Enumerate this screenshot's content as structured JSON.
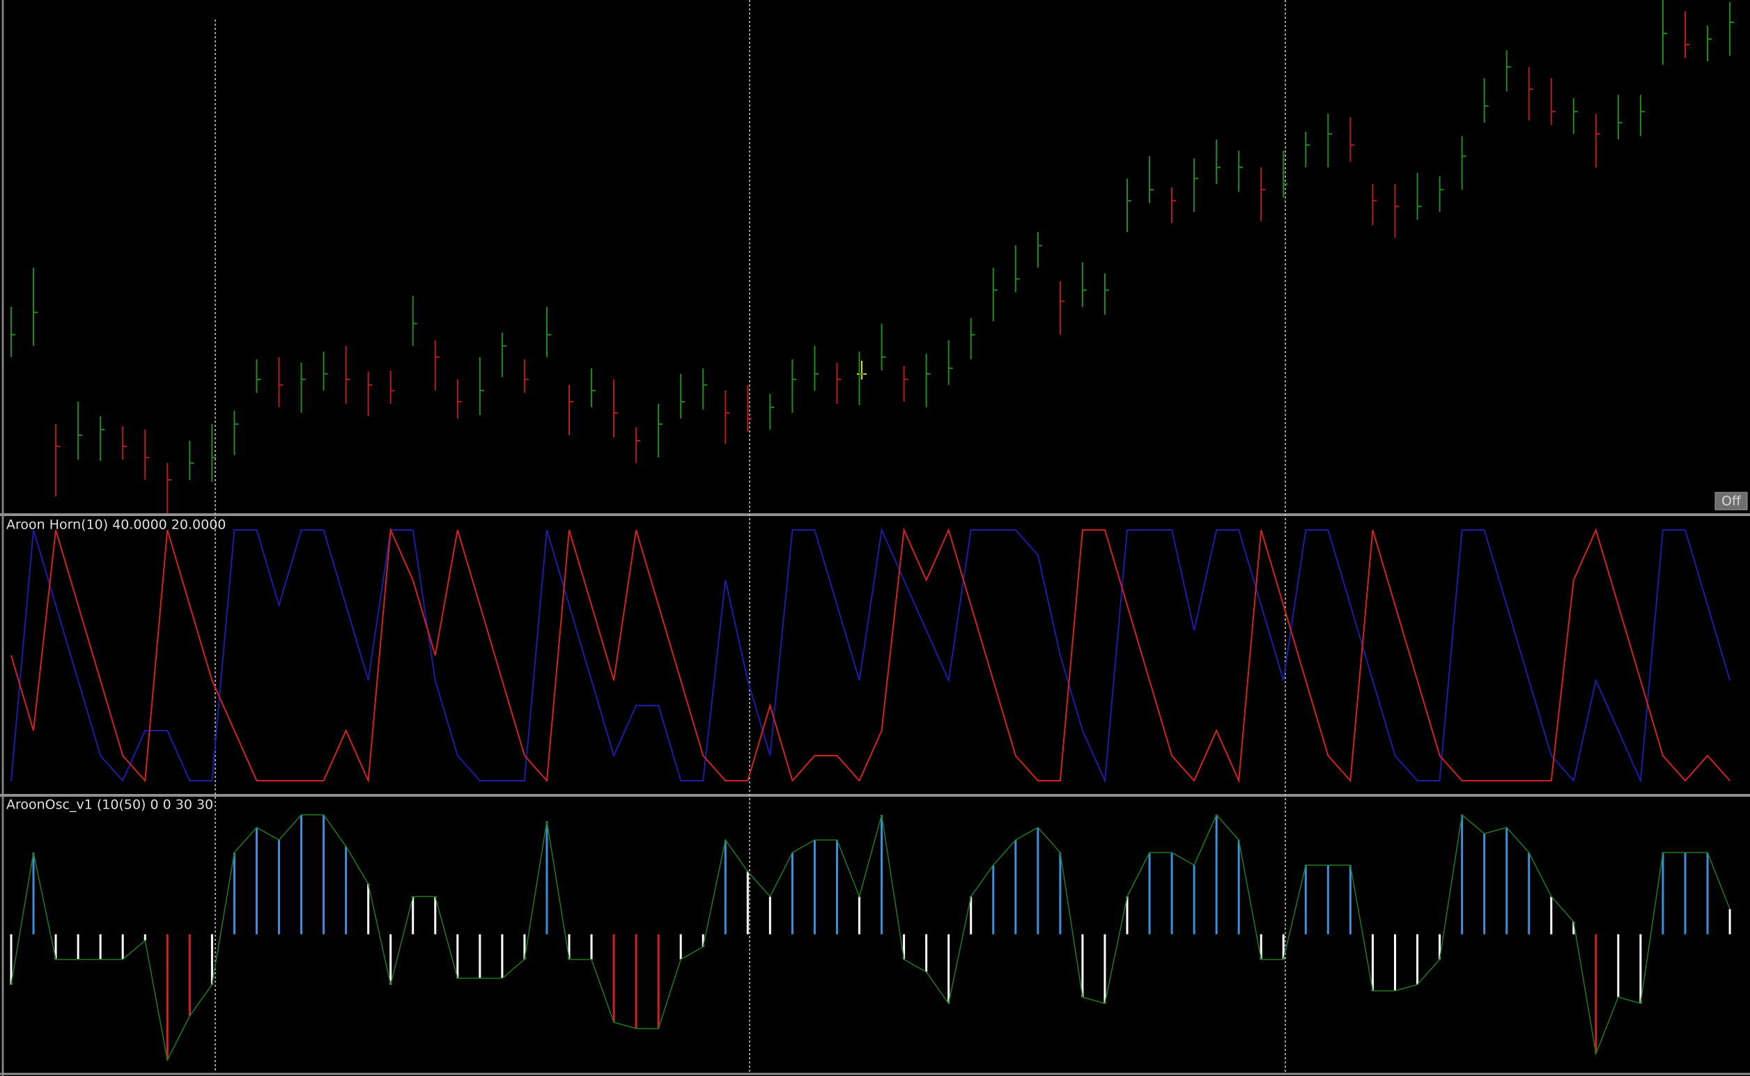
{
  "chart_data": [
    {
      "type": "ohlc",
      "ylim": [
        0,
        460
      ],
      "up_color": "#1f8c1f",
      "down_color": "#b81c1c",
      "high": [
        185,
        220,
        80,
        100,
        87,
        78,
        75,
        45,
        65,
        80,
        92,
        138,
        140,
        135,
        145,
        150,
        127,
        128,
        195,
        155,
        120,
        140,
        162,
        138,
        185,
        115,
        130,
        120,
        77,
        98,
        125,
        130,
        110,
        115,
        107,
        138,
        150,
        135,
        145,
        170,
        132,
        143,
        155,
        175,
        220,
        240,
        252,
        208,
        225,
        215,
        300,
        320,
        292,
        318,
        335,
        325,
        310,
        325,
        342,
        358,
        355,
        295,
        295,
        305,
        302,
        338,
        390,
        415,
        400,
        390,
        372,
        358,
        375,
        375,
        460,
        450,
        437,
        458
      ],
      "low": [
        140,
        150,
        15,
        48,
        47,
        48,
        30,
        0,
        30,
        28,
        52,
        108,
        95,
        90,
        110,
        98,
        87,
        98,
        150,
        110,
        85,
        88,
        122,
        108,
        140,
        70,
        95,
        68,
        45,
        50,
        85,
        93,
        62,
        73,
        75,
        90,
        110,
        98,
        97,
        128,
        100,
        95,
        115,
        138,
        172,
        198,
        220,
        160,
        185,
        178,
        252,
        278,
        260,
        270,
        295,
        288,
        262,
        283,
        310,
        310,
        315,
        258,
        247,
        263,
        270,
        290,
        350,
        378,
        352,
        348,
        340,
        310,
        335,
        338,
        402,
        408,
        405,
        410
      ],
      "close": [
        160,
        180,
        60,
        70,
        75,
        60,
        50,
        30,
        45,
        50,
        80,
        120,
        115,
        120,
        125,
        120,
        115,
        110,
        170,
        140,
        100,
        110,
        150,
        120,
        160,
        100,
        110,
        90,
        65,
        80,
        100,
        115,
        90,
        85,
        95,
        120,
        125,
        120,
        125,
        140,
        120,
        125,
        130,
        160,
        200,
        210,
        240,
        190,
        200,
        200,
        280,
        290,
        280,
        300,
        310,
        310,
        290,
        295,
        330,
        340,
        330,
        280,
        275,
        275,
        290,
        320,
        365,
        400,
        380,
        360,
        360,
        340,
        350,
        360,
        430,
        420,
        425,
        440
      ]
    },
    {
      "type": "line",
      "title": "Aroon Horn(10) 40.0000 20.0000",
      "ylim": [
        0,
        100
      ],
      "series": [
        {
          "color": "#1c1ca8",
          "values": [
            0,
            100,
            70,
            40,
            10,
            0,
            20,
            20,
            0,
            0,
            100,
            100,
            70,
            100,
            100,
            70,
            40,
            100,
            100,
            40,
            10,
            0,
            0,
            0,
            100,
            70,
            40,
            10,
            30,
            30,
            0,
            0,
            80,
            40,
            10,
            100,
            100,
            70,
            40,
            100,
            80,
            60,
            40,
            100,
            100,
            100,
            90,
            50,
            20,
            0,
            100,
            100,
            100,
            60,
            100,
            100,
            70,
            40,
            100,
            100,
            70,
            40,
            10,
            0,
            0,
            100,
            100,
            70,
            40,
            10,
            0,
            40,
            20,
            0,
            100,
            100,
            70,
            40
          ]
        },
        {
          "color": "#d42222",
          "values": [
            50,
            20,
            100,
            70,
            40,
            10,
            0,
            100,
            70,
            40,
            20,
            0,
            0,
            0,
            0,
            20,
            0,
            100,
            80,
            50,
            100,
            70,
            40,
            10,
            0,
            100,
            70,
            40,
            100,
            70,
            40,
            10,
            0,
            0,
            30,
            0,
            10,
            10,
            0,
            20,
            100,
            80,
            100,
            70,
            40,
            10,
            0,
            0,
            100,
            100,
            70,
            40,
            10,
            0,
            20,
            0,
            100,
            70,
            40,
            10,
            0,
            100,
            70,
            40,
            10,
            0,
            0,
            0,
            0,
            0,
            80,
            100,
            70,
            40,
            10,
            0,
            10,
            0
          ]
        }
      ]
    },
    {
      "type": "histogram",
      "title": "AroonOsc_v1 (10(50) 0 0 30 30",
      "ylim": [
        -100,
        100
      ],
      "upper_level": 50,
      "lower_level": -60,
      "upper_color": "#3a90dc",
      "middle_color": "#ffffff",
      "lower_color": "#d42222",
      "outline_color": "#1f7a1f",
      "values": [
        -40,
        65,
        -20,
        -20,
        -20,
        -20,
        -5,
        -100,
        -65,
        -40,
        65,
        85,
        75,
        95,
        95,
        70,
        40,
        -40,
        30,
        30,
        -35,
        -35,
        -35,
        -20,
        90,
        -20,
        -20,
        -70,
        -75,
        -75,
        -20,
        -10,
        75,
        50,
        30,
        65,
        75,
        75,
        30,
        95,
        -20,
        -30,
        -55,
        30,
        55,
        75,
        85,
        65,
        -50,
        -55,
        30,
        65,
        65,
        55,
        95,
        75,
        -20,
        -20,
        55,
        55,
        55,
        -45,
        -45,
        -40,
        -20,
        95,
        80,
        85,
        65,
        30,
        10,
        -95,
        -50,
        -55,
        65,
        65,
        65,
        20
      ]
    }
  ],
  "button": {
    "label": "Off"
  }
}
